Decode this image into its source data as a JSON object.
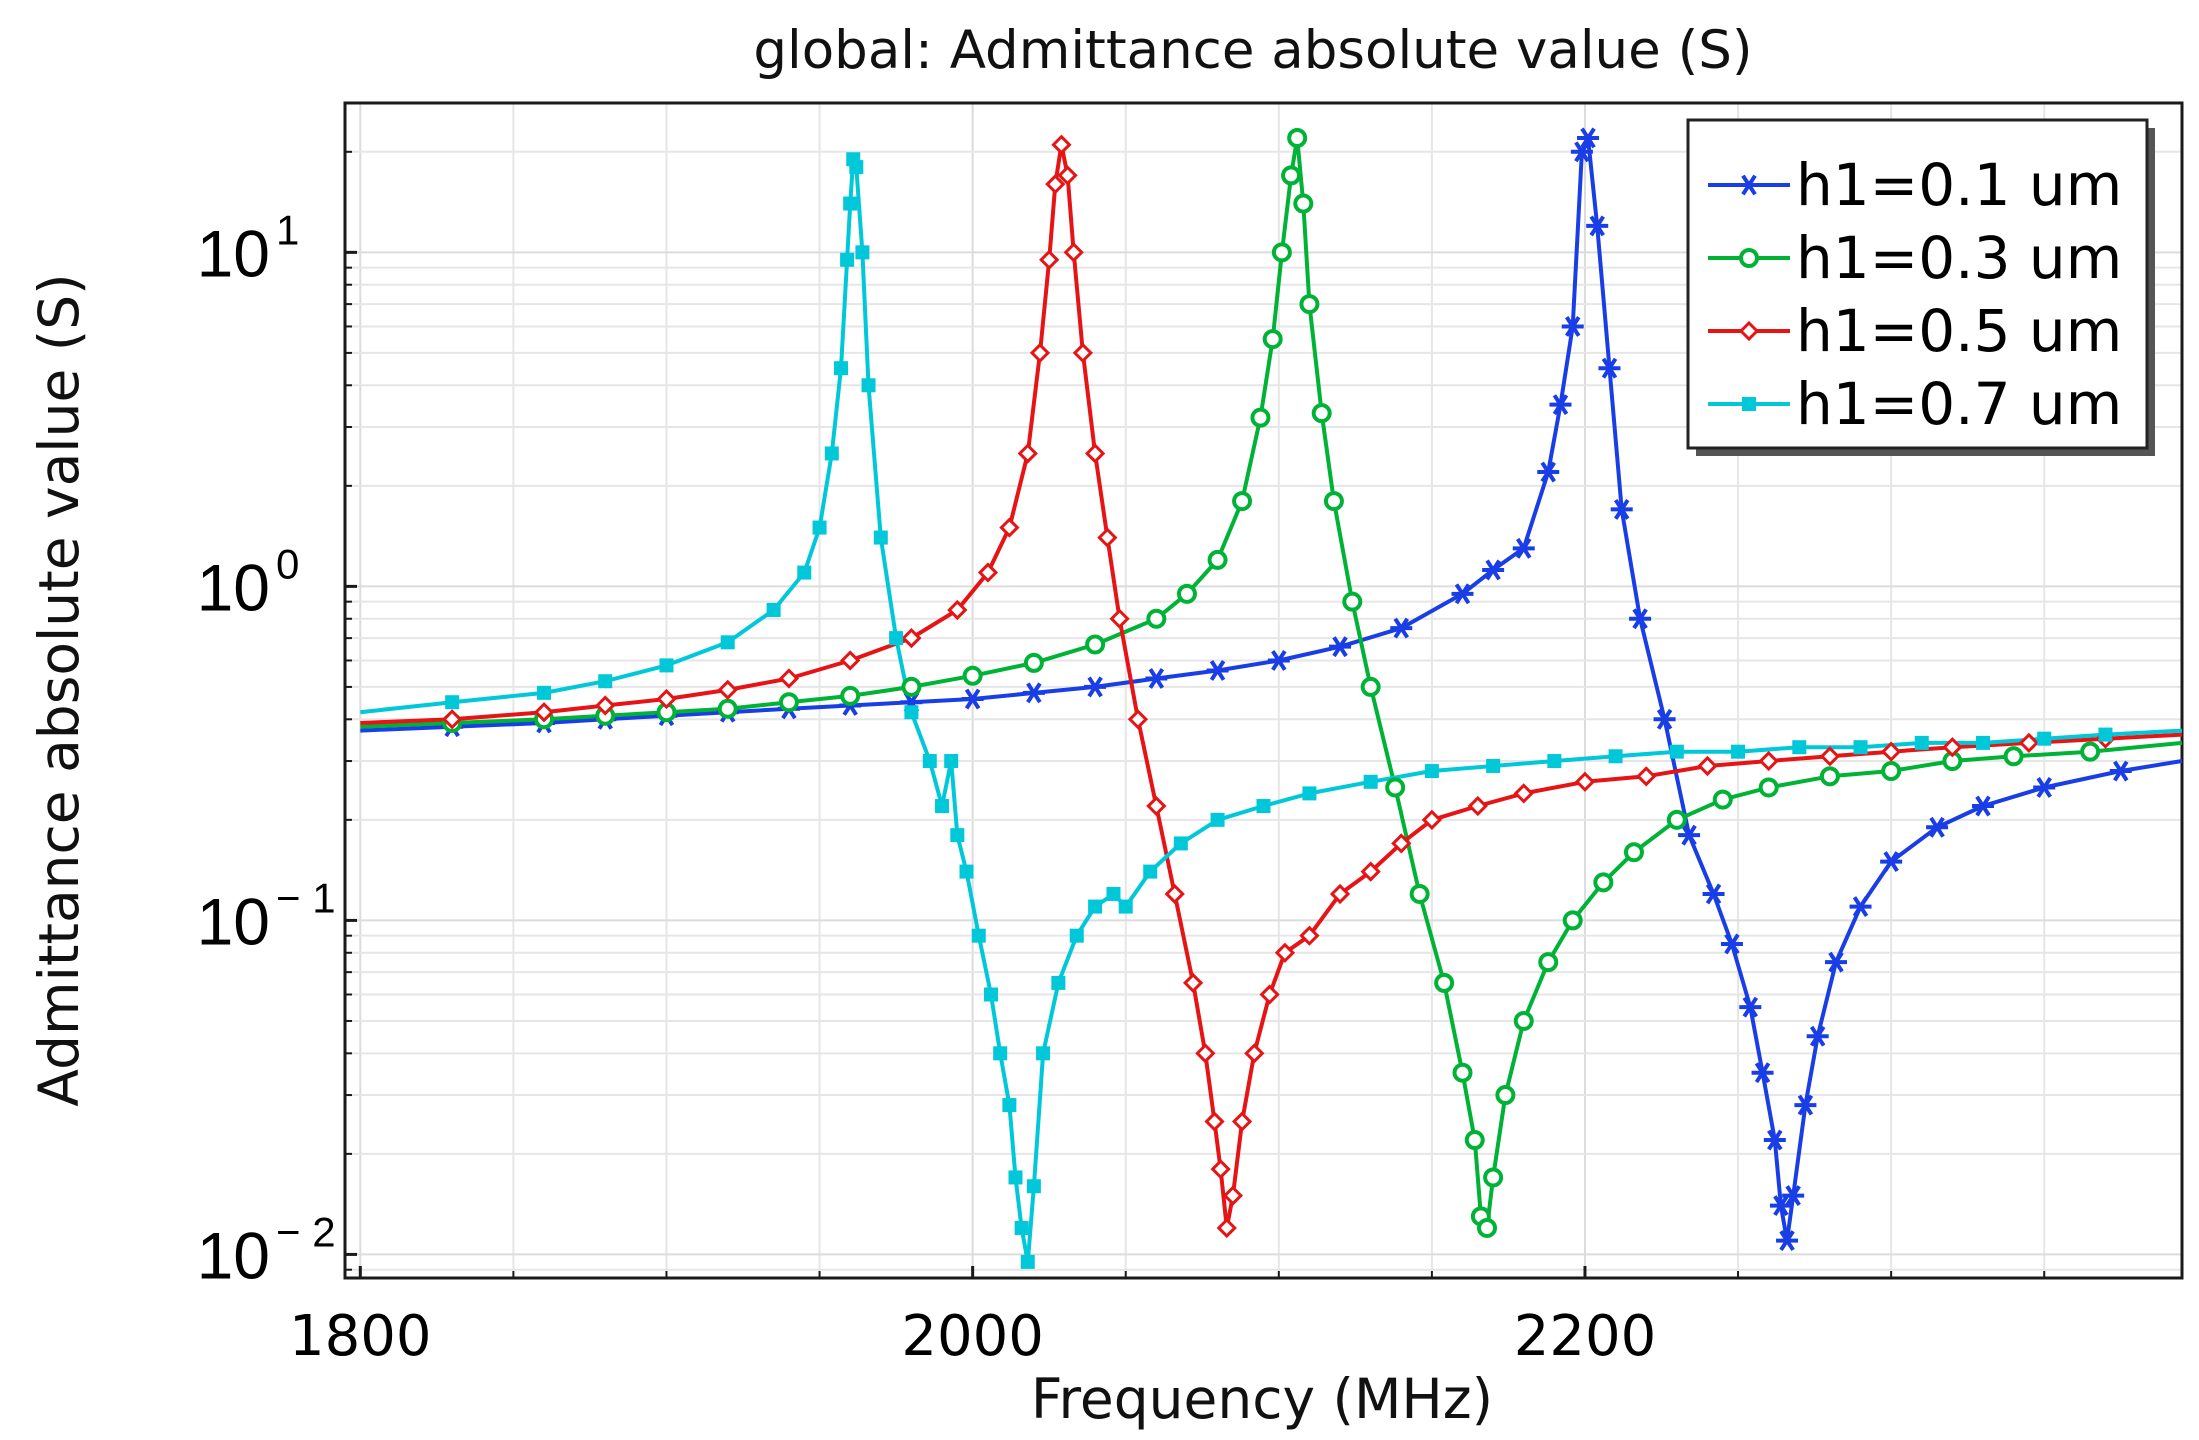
{
  "chart_data": {
    "type": "line",
    "title": "global: Admittance absolute value (S)",
    "xlabel": "Frequency (MHz)",
    "ylabel": "Admittance absolute value (S)",
    "xlim": [
      1795,
      2395
    ],
    "ylim": [
      0.0085,
      28
    ],
    "yscale": "log",
    "xticks": [
      {
        "value": 1800,
        "label": "1800"
      },
      {
        "value": 2000,
        "label": "2000"
      },
      {
        "value": 2200,
        "label": "2200"
      }
    ],
    "yticks": [
      {
        "value": 10,
        "base": "10",
        "exp": "1"
      },
      {
        "value": 1,
        "base": "10",
        "exp": "0"
      },
      {
        "value": 0.1,
        "base": "10",
        "exp": "− 1"
      },
      {
        "value": 0.01,
        "base": "10",
        "exp": "− 2"
      }
    ],
    "grid": true,
    "legend_position": "top-right",
    "series": [
      {
        "name": "h1=0.1 um",
        "color": "#1a3ee6",
        "marker": "asterisk",
        "x": [
          1800,
          1830,
          1860,
          1880,
          1900,
          1920,
          1940,
          1960,
          1980,
          2000,
          2020,
          2040,
          2060,
          2080,
          2100,
          2120,
          2140,
          2160,
          2170,
          2180,
          2188,
          2192,
          2196,
          2199,
          2201,
          2204,
          2208,
          2212,
          2218,
          2226,
          2234,
          2242,
          2248,
          2254,
          2258,
          2262,
          2264,
          2266,
          2268,
          2272,
          2276,
          2282,
          2290,
          2300,
          2315,
          2330,
          2350,
          2375,
          2395
        ],
        "y": [
          0.37,
          0.38,
          0.39,
          0.4,
          0.41,
          0.42,
          0.43,
          0.44,
          0.45,
          0.46,
          0.48,
          0.5,
          0.53,
          0.56,
          0.6,
          0.66,
          0.75,
          0.95,
          1.12,
          1.3,
          2.2,
          3.5,
          6,
          20,
          22,
          12,
          4.5,
          1.7,
          0.8,
          0.4,
          0.18,
          0.12,
          0.085,
          0.055,
          0.035,
          0.022,
          0.014,
          0.011,
          0.015,
          0.028,
          0.045,
          0.075,
          0.11,
          0.15,
          0.19,
          0.22,
          0.25,
          0.28,
          0.3
        ]
      },
      {
        "name": "h1=0.3 um",
        "color": "#00b236",
        "marker": "circle",
        "x": [
          1800,
          1830,
          1860,
          1880,
          1900,
          1920,
          1940,
          1960,
          1980,
          2000,
          2020,
          2040,
          2060,
          2070,
          2080,
          2088,
          2094,
          2098,
          2101,
          2104,
          2106,
          2108,
          2110,
          2114,
          2118,
          2124,
          2130,
          2138,
          2146,
          2154,
          2160,
          2164,
          2166,
          2168,
          2170,
          2174,
          2180,
          2188,
          2196,
          2206,
          2216,
          2230,
          2245,
          2260,
          2280,
          2300,
          2320,
          2340,
          2365,
          2395
        ],
        "y": [
          0.38,
          0.39,
          0.4,
          0.41,
          0.42,
          0.43,
          0.45,
          0.47,
          0.5,
          0.54,
          0.59,
          0.67,
          0.8,
          0.95,
          1.2,
          1.8,
          3.2,
          5.5,
          10,
          17,
          22,
          14,
          7,
          3.3,
          1.8,
          0.9,
          0.5,
          0.25,
          0.12,
          0.065,
          0.035,
          0.022,
          0.013,
          0.012,
          0.017,
          0.03,
          0.05,
          0.075,
          0.1,
          0.13,
          0.16,
          0.2,
          0.23,
          0.25,
          0.27,
          0.28,
          0.3,
          0.31,
          0.32,
          0.34
        ]
      },
      {
        "name": "h1=0.5 um",
        "color": "#e61414",
        "marker": "diamond",
        "x": [
          1800,
          1830,
          1860,
          1880,
          1900,
          1920,
          1940,
          1960,
          1980,
          1995,
          2005,
          2012,
          2018,
          2022,
          2025,
          2027,
          2029,
          2031,
          2033,
          2036,
          2040,
          2044,
          2048,
          2054,
          2060,
          2066,
          2072,
          2076,
          2079,
          2081,
          2083,
          2085,
          2088,
          2092,
          2097,
          2102,
          2110,
          2120,
          2130,
          2140,
          2150,
          2165,
          2180,
          2200,
          2220,
          2240,
          2260,
          2280,
          2300,
          2320,
          2345,
          2370,
          2395
        ],
        "y": [
          0.39,
          0.4,
          0.42,
          0.44,
          0.46,
          0.49,
          0.53,
          0.6,
          0.7,
          0.85,
          1.1,
          1.5,
          2.5,
          5,
          9.5,
          16,
          21,
          17,
          10,
          5,
          2.5,
          1.4,
          0.8,
          0.4,
          0.22,
          0.12,
          0.065,
          0.04,
          0.025,
          0.018,
          0.012,
          0.015,
          0.025,
          0.04,
          0.06,
          0.08,
          0.09,
          0.12,
          0.14,
          0.17,
          0.2,
          0.22,
          0.24,
          0.26,
          0.27,
          0.29,
          0.3,
          0.31,
          0.32,
          0.33,
          0.34,
          0.35,
          0.36
        ]
      },
      {
        "name": "h1=0.7 um",
        "color": "#00c8d8",
        "marker": "square",
        "x": [
          1800,
          1830,
          1860,
          1880,
          1900,
          1920,
          1935,
          1945,
          1950,
          1954,
          1957,
          1959,
          1960,
          1961,
          1962,
          1964,
          1966,
          1970,
          1975,
          1980,
          1986,
          1990,
          1993,
          1995,
          1998,
          2002,
          2006,
          2009,
          2012,
          2014,
          2016,
          2018,
          2020,
          2023,
          2028,
          2034,
          2040,
          2046,
          2050,
          2058,
          2068,
          2080,
          2095,
          2110,
          2130,
          2150,
          2170,
          2190,
          2210,
          2230,
          2250,
          2270,
          2290,
          2310,
          2330,
          2350,
          2370,
          2395
        ],
        "y": [
          0.42,
          0.45,
          0.48,
          0.52,
          0.58,
          0.68,
          0.85,
          1.1,
          1.5,
          2.5,
          4.5,
          9.5,
          14,
          19,
          18,
          10,
          4,
          1.4,
          0.7,
          0.42,
          0.3,
          0.22,
          0.3,
          0.18,
          0.14,
          0.09,
          0.06,
          0.04,
          0.028,
          0.017,
          0.012,
          0.0095,
          0.016,
          0.04,
          0.065,
          0.09,
          0.11,
          0.12,
          0.11,
          0.14,
          0.17,
          0.2,
          0.22,
          0.24,
          0.26,
          0.28,
          0.29,
          0.3,
          0.31,
          0.32,
          0.32,
          0.33,
          0.33,
          0.34,
          0.34,
          0.35,
          0.36,
          0.37
        ]
      }
    ]
  }
}
